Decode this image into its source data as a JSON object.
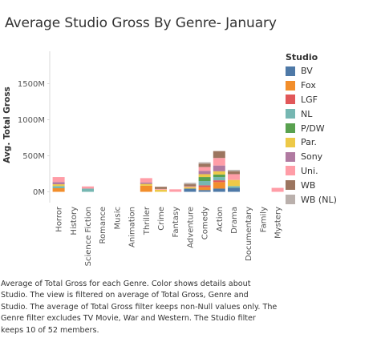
{
  "title": "Average Studio Gross By Genre- January",
  "caption": "Average of Total Gross for each Genre.  Color shows details about Studio. The view is filtered on average of Total Gross, Genre and Studio. The average of Total Gross filter keeps non-Null values only. The Genre filter excludes TV Movie, War and Western. The Studio filter keeps 10 of 52 members.",
  "legend": {
    "title": "Studio",
    "items": [
      {
        "label": "BV",
        "color": "#4e79a7"
      },
      {
        "label": "Fox",
        "color": "#f28e2b"
      },
      {
        "label": "LGF",
        "color": "#e15759"
      },
      {
        "label": "NL",
        "color": "#76b7b2"
      },
      {
        "label": "P/DW",
        "color": "#59a14f"
      },
      {
        "label": "Par.",
        "color": "#edc948"
      },
      {
        "label": "Sony",
        "color": "#b07aa1"
      },
      {
        "label": "Uni.",
        "color": "#ff9da7"
      },
      {
        "label": "WB",
        "color": "#9c755f"
      },
      {
        "label": "WB (NL)",
        "color": "#bab0ac"
      }
    ]
  },
  "chart_data": {
    "type": "bar",
    "stacked": true,
    "ylabel": "Avg. Total Gross",
    "xlabel": "",
    "ylim": [
      -150,
      1950
    ],
    "y_ticks": [
      {
        "value": 0,
        "label": "0M"
      },
      {
        "value": 500,
        "label": "500M"
      },
      {
        "value": 1000,
        "label": "1000M"
      },
      {
        "value": 1500,
        "label": "1500M"
      }
    ],
    "grid": false,
    "legend_position": "right",
    "categories": [
      "Horror",
      "History",
      "Science Fiction",
      "Romance",
      "Music",
      "Animation",
      "Thriller",
      "Crime",
      "Fantasy",
      "Adventure",
      "Comedy",
      "Action",
      "Drama",
      "Documentary",
      "Family",
      "Mystery"
    ],
    "series": [
      {
        "name": "BV",
        "values": [
          0,
          0,
          0,
          0,
          0,
          0,
          0,
          0,
          0,
          45,
          25,
          45,
          55,
          0,
          0,
          0
        ]
      },
      {
        "name": "Fox",
        "values": [
          50,
          0,
          0,
          0,
          0,
          0,
          85,
          0,
          0,
          0,
          40,
          90,
          0,
          0,
          0,
          0
        ]
      },
      {
        "name": "LGF",
        "values": [
          0,
          0,
          0,
          0,
          0,
          0,
          0,
          0,
          0,
          0,
          25,
          25,
          0,
          0,
          0,
          0
        ]
      },
      {
        "name": "NL",
        "values": [
          30,
          0,
          45,
          0,
          0,
          0,
          0,
          0,
          0,
          0,
          60,
          45,
          25,
          0,
          0,
          0
        ]
      },
      {
        "name": "P/DW",
        "values": [
          0,
          0,
          0,
          0,
          0,
          0,
          0,
          0,
          0,
          0,
          55,
          35,
          0,
          0,
          0,
          0
        ]
      },
      {
        "name": "Par.",
        "values": [
          25,
          0,
          0,
          0,
          0,
          0,
          25,
          30,
          0,
          20,
          40,
          45,
          85,
          0,
          0,
          0
        ]
      },
      {
        "name": "Sony",
        "values": [
          30,
          0,
          0,
          0,
          0,
          0,
          20,
          0,
          0,
          0,
          45,
          80,
          0,
          0,
          0,
          0
        ]
      },
      {
        "name": "Uni.",
        "values": [
          70,
          0,
          30,
          0,
          0,
          0,
          60,
          10,
          35,
          10,
          55,
          105,
          80,
          0,
          0,
          55
        ]
      },
      {
        "name": "WB",
        "values": [
          0,
          0,
          0,
          0,
          0,
          0,
          0,
          30,
          0,
          30,
          45,
          95,
          40,
          0,
          0,
          0
        ]
      },
      {
        "name": "WB (NL)",
        "values": [
          0,
          0,
          0,
          0,
          0,
          0,
          0,
          0,
          0,
          20,
          20,
          0,
          20,
          0,
          0,
          0
        ]
      }
    ]
  }
}
